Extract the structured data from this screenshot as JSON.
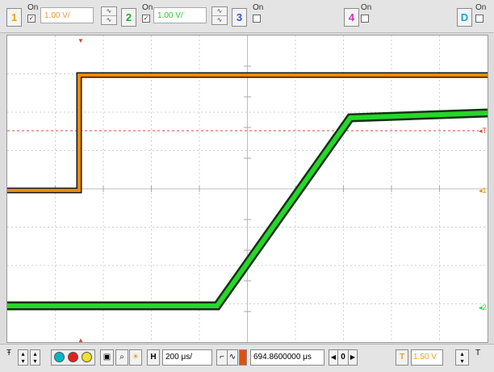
{
  "channels": [
    {
      "number": "1",
      "on_label": "On",
      "checked": true,
      "scale": "1.00 V/",
      "color": "#f0a020"
    },
    {
      "number": "2",
      "on_label": "On",
      "checked": true,
      "scale": "1.00 V/",
      "color": "#22b822"
    },
    {
      "number": "3",
      "on_label": "On",
      "checked": false,
      "color": "#3355dd"
    },
    {
      "number": "4",
      "on_label": "On",
      "checked": false,
      "color": "#d62fbd"
    },
    {
      "number": "D",
      "color": "#1aa0e0"
    }
  ],
  "timebase": {
    "label": "H",
    "value": "200 μs/"
  },
  "position": {
    "value": "694.8600000 μs",
    "readout": "0"
  },
  "trigger": {
    "label": "T",
    "level": "1.50 V",
    "source_label": "T"
  },
  "markers": {
    "trigger_left": "T",
    "channel1": "1",
    "channel2": "2"
  },
  "colors": {
    "ch1_trace": "#f08a00",
    "ch2_trace": "#26d62a",
    "trace_edge": "#153015",
    "trigger_line": "#d84a30",
    "grid": "#cfcfcf"
  },
  "icons": [
    "info-icon",
    "arrow-stepper-icon",
    "color-cyan-icon",
    "color-red-icon",
    "color-yellow-icon",
    "camera-icon",
    "zoom-icon",
    "brightness-icon",
    "edge-icon",
    "left-arrow-icon",
    "right-arrow-icon"
  ]
}
